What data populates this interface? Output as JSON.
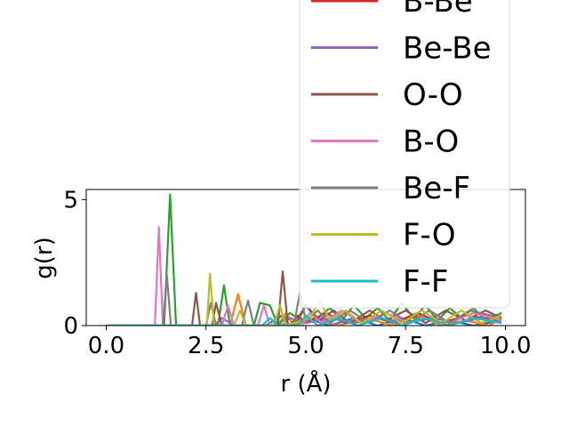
{
  "chart_data": {
    "type": "line",
    "xlabel": "r (Å)",
    "ylabel": "g(r)",
    "xlim": [
      -0.5,
      10.5
    ],
    "ylim": [
      0,
      5.4
    ],
    "x_ticks": [
      "0.0",
      "2.5",
      "5.0",
      "7.5",
      "10.0"
    ],
    "x_tick_values": [
      0,
      2.5,
      5,
      7.5,
      10
    ],
    "y_ticks": [
      "0",
      "5"
    ],
    "y_tick_values": [
      0,
      5
    ],
    "grid": false,
    "legend_placement": "upper-right, extending above the axes",
    "legend": [
      {
        "label": "B-Be",
        "color": "#d62728"
      },
      {
        "label": "Be-Be",
        "color": "#9467bd"
      },
      {
        "label": "O-O",
        "color": "#8c564b"
      },
      {
        "label": "B-O",
        "color": "#e377c2"
      },
      {
        "label": "Be-F",
        "color": "#7f7f7f"
      },
      {
        "label": "F-O",
        "color": "#bcbd22"
      },
      {
        "label": "F-F",
        "color": "#17becf"
      }
    ],
    "series": [
      {
        "color": "#1f77b4",
        "points": [
          [
            0,
            0
          ],
          [
            1.6,
            0
          ],
          [
            2.6,
            0
          ],
          [
            3.2,
            0
          ],
          [
            4.0,
            0
          ],
          [
            4.4,
            0.4
          ],
          [
            4.6,
            0
          ],
          [
            5.0,
            0.3
          ],
          [
            5.6,
            0
          ],
          [
            6.2,
            0.3
          ],
          [
            6.8,
            0
          ],
          [
            7.4,
            0.3
          ],
          [
            8.0,
            0
          ],
          [
            8.6,
            0.2
          ],
          [
            9.2,
            0
          ],
          [
            9.9,
            0.2
          ]
        ]
      },
      {
        "color": "#ff7f0e",
        "points": [
          [
            0,
            0
          ],
          [
            3.1,
            0
          ],
          [
            3.3,
            1.25
          ],
          [
            3.5,
            0
          ],
          [
            4.3,
            0
          ],
          [
            4.5,
            0.5
          ],
          [
            4.7,
            0
          ],
          [
            5.2,
            0.3
          ],
          [
            5.8,
            0
          ],
          [
            6.5,
            0.3
          ],
          [
            7.2,
            0
          ],
          [
            7.8,
            0.4
          ],
          [
            8.4,
            0
          ],
          [
            9.0,
            0.2
          ],
          [
            9.6,
            0
          ],
          [
            9.9,
            0.3
          ]
        ]
      },
      {
        "color": "#2ca02c",
        "points": [
          [
            0,
            0
          ],
          [
            1.45,
            0
          ],
          [
            1.6,
            5.2
          ],
          [
            1.75,
            0
          ],
          [
            2.8,
            0
          ],
          [
            2.95,
            1.6
          ],
          [
            3.1,
            0
          ],
          [
            3.7,
            0
          ],
          [
            3.85,
            0.9
          ],
          [
            4.1,
            0.8
          ],
          [
            4.3,
            0
          ],
          [
            4.6,
            0.5
          ],
          [
            4.8,
            0.3
          ],
          [
            5.0,
            0.8
          ],
          [
            5.3,
            0.3
          ],
          [
            5.6,
            0.7
          ],
          [
            5.9,
            0.2
          ],
          [
            6.2,
            0.8
          ],
          [
            6.5,
            0.3
          ],
          [
            6.8,
            0.7
          ],
          [
            7.1,
            0.2
          ],
          [
            7.4,
            0.9
          ],
          [
            7.7,
            0.3
          ],
          [
            8.0,
            0.8
          ],
          [
            8.3,
            0.2
          ],
          [
            8.6,
            0.7
          ],
          [
            8.9,
            0.3
          ],
          [
            9.2,
            0.7
          ],
          [
            9.5,
            0.2
          ],
          [
            9.9,
            0.5
          ]
        ]
      },
      {
        "color": "#d62728",
        "points": [
          [
            0,
            0
          ],
          [
            4.6,
            0
          ],
          [
            4.8,
            0.4
          ],
          [
            5.0,
            0.1
          ],
          [
            5.5,
            0.5
          ],
          [
            6.0,
            0.1
          ],
          [
            6.6,
            0.4
          ],
          [
            7.2,
            0.1
          ],
          [
            7.8,
            0.5
          ],
          [
            8.4,
            0.1
          ],
          [
            9.0,
            0.4
          ],
          [
            9.9,
            0.2
          ]
        ]
      },
      {
        "color": "#9467bd",
        "points": [
          [
            0,
            0
          ],
          [
            2.7,
            0
          ],
          [
            2.9,
            0.3
          ],
          [
            3.2,
            0
          ],
          [
            4.4,
            0
          ],
          [
            4.6,
            0.3
          ],
          [
            5.0,
            0.1
          ],
          [
            5.6,
            0.3
          ],
          [
            6.2,
            0.1
          ],
          [
            6.9,
            0.3
          ],
          [
            7.5,
            0.1
          ],
          [
            8.2,
            0.3
          ],
          [
            8.8,
            0.1
          ],
          [
            9.4,
            0.3
          ],
          [
            9.9,
            0.1
          ]
        ]
      },
      {
        "color": "#8c564b",
        "points": [
          [
            0,
            0
          ],
          [
            2.15,
            0
          ],
          [
            2.25,
            1.3
          ],
          [
            2.35,
            0
          ],
          [
            2.65,
            0
          ],
          [
            2.75,
            0.9
          ],
          [
            2.9,
            0
          ],
          [
            4.3,
            0
          ],
          [
            4.42,
            2.15
          ],
          [
            4.55,
            0
          ],
          [
            4.8,
            0.2
          ],
          [
            5.0,
            0.8
          ],
          [
            5.3,
            0.2
          ],
          [
            5.7,
            0.6
          ],
          [
            6.1,
            0.1
          ],
          [
            6.6,
            0.6
          ],
          [
            7.0,
            0.2
          ],
          [
            7.5,
            0.6
          ],
          [
            8.0,
            0.1
          ],
          [
            8.5,
            0.6
          ],
          [
            9.0,
            0.2
          ],
          [
            9.5,
            0.6
          ],
          [
            9.9,
            0.3
          ]
        ]
      },
      {
        "color": "#e377c2",
        "points": [
          [
            0,
            0
          ],
          [
            1.22,
            0
          ],
          [
            1.32,
            3.9
          ],
          [
            1.42,
            0
          ],
          [
            2.9,
            0
          ],
          [
            3.05,
            0.8
          ],
          [
            3.2,
            0
          ],
          [
            3.8,
            0
          ],
          [
            3.95,
            0.8
          ],
          [
            4.1,
            0
          ],
          [
            4.9,
            0
          ],
          [
            5.1,
            0.5
          ],
          [
            5.4,
            0.1
          ],
          [
            5.9,
            0.6
          ],
          [
            6.4,
            0.1
          ],
          [
            7.0,
            0.5
          ],
          [
            7.6,
            0.1
          ],
          [
            8.1,
            0.6
          ],
          [
            8.6,
            0.1
          ],
          [
            9.2,
            0.5
          ],
          [
            9.9,
            0.2
          ]
        ]
      },
      {
        "color": "#7f7f7f",
        "points": [
          [
            0,
            0
          ],
          [
            1.42,
            0
          ],
          [
            1.52,
            2.0
          ],
          [
            1.62,
            0
          ],
          [
            2.5,
            0
          ],
          [
            2.62,
            0.9
          ],
          [
            2.75,
            0
          ],
          [
            3.4,
            0
          ],
          [
            3.55,
            1.0
          ],
          [
            3.7,
            0
          ],
          [
            4.7,
            0
          ],
          [
            4.85,
            1.3
          ],
          [
            5.0,
            0.2
          ],
          [
            5.3,
            0.6
          ],
          [
            5.6,
            0.1
          ],
          [
            6.1,
            0.6
          ],
          [
            6.6,
            0.1
          ],
          [
            7.1,
            0.6
          ],
          [
            7.6,
            0.1
          ],
          [
            8.1,
            0.6
          ],
          [
            8.6,
            0.1
          ],
          [
            9.1,
            0.6
          ],
          [
            9.9,
            0.3
          ]
        ]
      },
      {
        "color": "#bcbd22",
        "points": [
          [
            0,
            0
          ],
          [
            2.52,
            0
          ],
          [
            2.6,
            2.05
          ],
          [
            2.7,
            0
          ],
          [
            3.2,
            0
          ],
          [
            3.35,
            0.6
          ],
          [
            3.5,
            0
          ],
          [
            4.2,
            0
          ],
          [
            4.35,
            0.8
          ],
          [
            4.5,
            0
          ],
          [
            5.1,
            0.3
          ],
          [
            5.35,
            1.0
          ],
          [
            5.6,
            0.2
          ],
          [
            6.0,
            0.6
          ],
          [
            6.4,
            0.1
          ],
          [
            6.9,
            0.6
          ],
          [
            7.4,
            0.1
          ],
          [
            7.9,
            0.6
          ],
          [
            8.4,
            0.1
          ],
          [
            8.9,
            0.6
          ],
          [
            9.4,
            0.1
          ],
          [
            9.9,
            0.4
          ]
        ]
      },
      {
        "color": "#17becf",
        "points": [
          [
            0,
            0
          ],
          [
            3.9,
            0
          ],
          [
            4.1,
            0.3
          ],
          [
            4.3,
            0
          ],
          [
            4.8,
            0
          ],
          [
            5.0,
            0.4
          ],
          [
            5.3,
            0
          ],
          [
            5.8,
            0.3
          ],
          [
            6.3,
            0
          ],
          [
            6.9,
            0.3
          ],
          [
            7.4,
            0
          ],
          [
            8.0,
            0.3
          ],
          [
            8.6,
            0
          ],
          [
            9.2,
            0.3
          ],
          [
            9.9,
            0.1
          ]
        ]
      }
    ]
  }
}
